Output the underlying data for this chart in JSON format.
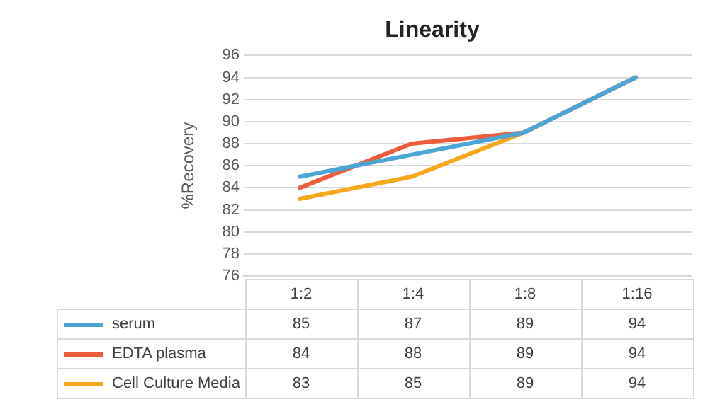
{
  "chart_data": {
    "type": "line",
    "title": "Linearity",
    "ylabel": "%Recovery",
    "categories": [
      "1:2",
      "1:4",
      "1:8",
      "1:16"
    ],
    "series": [
      {
        "name": "serum",
        "color": "#4ba6d6",
        "values": [
          85,
          87,
          89,
          94
        ]
      },
      {
        "name": "EDTA plasma",
        "color": "#ec5d3b",
        "values": [
          84,
          88,
          89,
          94
        ]
      },
      {
        "name": "Cell Culture Media",
        "color": "#f5a81c",
        "values": [
          83,
          85,
          89,
          94
        ]
      }
    ],
    "ylim": [
      76,
      96
    ],
    "yticks": [
      76,
      78,
      80,
      82,
      84,
      86,
      88,
      90,
      92,
      94,
      96
    ],
    "grid": "y",
    "legend": "bottom",
    "data_labels": true,
    "marker": "none",
    "line_style": "solid"
  }
}
